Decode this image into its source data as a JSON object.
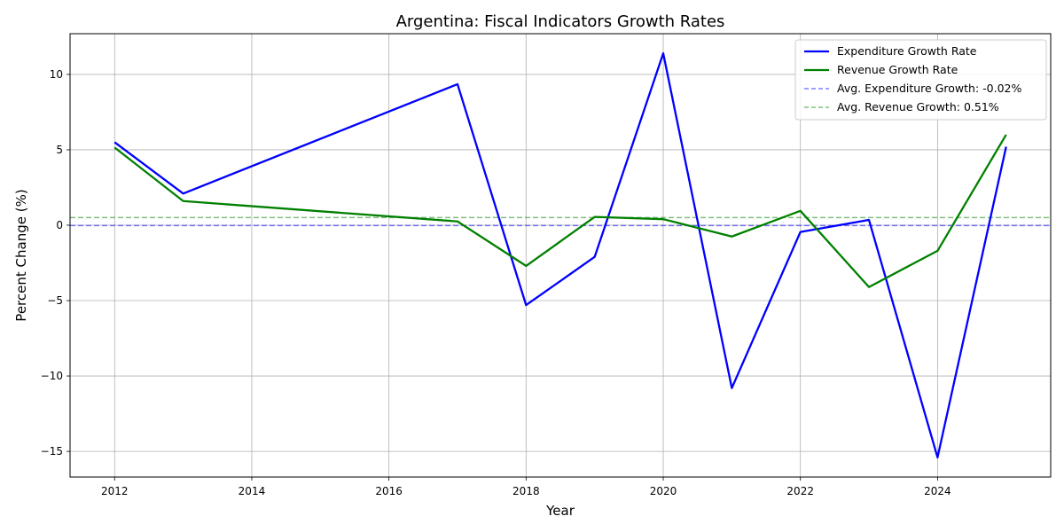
{
  "chart_data": {
    "type": "line",
    "title": "Argentina: Fiscal Indicators Growth Rates",
    "xlabel": "Year",
    "ylabel": "Percent Change (%)",
    "xlim": [
      2011.35,
      2025.65
    ],
    "ylim": [
      -16.7,
      12.7
    ],
    "xticks": [
      2012,
      2014,
      2016,
      2018,
      2020,
      2022,
      2024
    ],
    "xtick_labels": [
      "2012",
      "2014",
      "2016",
      "2018",
      "2020",
      "2022",
      "2024"
    ],
    "yticks": [
      -15,
      -10,
      -5,
      0,
      5,
      10
    ],
    "ytick_labels": [
      "−15",
      "−10",
      "−5",
      "0",
      "5",
      "10"
    ],
    "grid": true,
    "legend_position": "top-right",
    "series": [
      {
        "name": "Expenditure Growth Rate",
        "color": "#0000ff",
        "style": "solid",
        "x": [
          2012,
          2013,
          2017,
          2018,
          2019,
          2020,
          2021,
          2022,
          2023,
          2024,
          2025
        ],
        "y": [
          5.5,
          2.1,
          9.35,
          -5.3,
          -2.1,
          11.4,
          -10.8,
          -0.45,
          0.35,
          -15.4,
          5.2
        ]
      },
      {
        "name": "Revenue Growth Rate",
        "color": "#008000",
        "style": "solid",
        "x": [
          2012,
          2013,
          2017,
          2018,
          2019,
          2020,
          2021,
          2022,
          2023,
          2024,
          2025
        ],
        "y": [
          5.15,
          1.6,
          0.25,
          -2.7,
          0.55,
          0.4,
          -0.75,
          0.95,
          -4.1,
          -1.7,
          6.0
        ]
      }
    ],
    "reference_lines": [
      {
        "name": "Avg. Expenditure Growth: -0.02%",
        "value": -0.02,
        "color": "#0000ff",
        "style": "dashed"
      },
      {
        "name": "Avg. Revenue Growth: 0.51%",
        "value": 0.51,
        "color": "#008000",
        "style": "dashed"
      }
    ]
  }
}
